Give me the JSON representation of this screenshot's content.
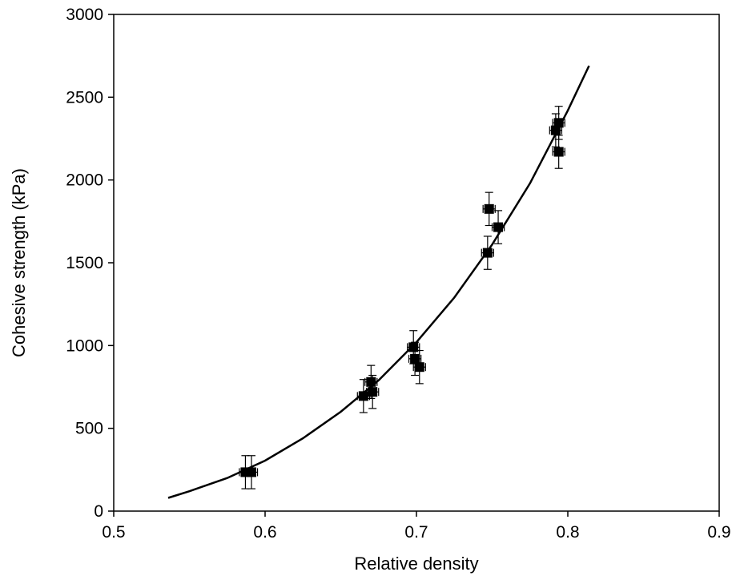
{
  "chart_data": {
    "type": "scatter",
    "title": "",
    "xlabel": "Relative density",
    "ylabel": "Cohesive strength (kPa)",
    "xlim": [
      0.5,
      0.9
    ],
    "ylim": [
      0,
      3000
    ],
    "x_ticks": [
      "0.5",
      "0.6",
      "0.7",
      "0.8",
      "0.9"
    ],
    "y_ticks": [
      "0",
      "500",
      "1000",
      "1500",
      "2000",
      "2500",
      "3000"
    ],
    "grid": false,
    "legend": "none",
    "marker": "square",
    "marker_color": "#000000",
    "points": [
      {
        "x": 0.587,
        "y": 235,
        "y_err": 100,
        "x_err": 0.004
      },
      {
        "x": 0.591,
        "y": 235,
        "y_err": 100,
        "x_err": 0.004
      },
      {
        "x": 0.665,
        "y": 695,
        "y_err": 100,
        "x_err": 0.004
      },
      {
        "x": 0.67,
        "y": 780,
        "y_err": 100,
        "x_err": 0.004
      },
      {
        "x": 0.671,
        "y": 720,
        "y_err": 100,
        "x_err": 0.004
      },
      {
        "x": 0.698,
        "y": 990,
        "y_err": 100,
        "x_err": 0.004
      },
      {
        "x": 0.699,
        "y": 920,
        "y_err": 100,
        "x_err": 0.004
      },
      {
        "x": 0.702,
        "y": 870,
        "y_err": 100,
        "x_err": 0.004
      },
      {
        "x": 0.747,
        "y": 1560,
        "y_err": 100,
        "x_err": 0.004
      },
      {
        "x": 0.748,
        "y": 1825,
        "y_err": 100,
        "x_err": 0.004
      },
      {
        "x": 0.754,
        "y": 1715,
        "y_err": 100,
        "x_err": 0.004
      },
      {
        "x": 0.792,
        "y": 2300,
        "y_err": 100,
        "x_err": 0.004
      },
      {
        "x": 0.794,
        "y": 2345,
        "y_err": 100,
        "x_err": 0.004
      },
      {
        "x": 0.794,
        "y": 2170,
        "y_err": 100,
        "x_err": 0.004
      }
    ],
    "fit_curve": {
      "x": [
        0.536,
        0.55,
        0.575,
        0.6,
        0.625,
        0.65,
        0.675,
        0.7,
        0.725,
        0.75,
        0.775,
        0.8,
        0.814
      ],
      "y": [
        80,
        120,
        200,
        305,
        440,
        600,
        790,
        1020,
        1290,
        1610,
        1980,
        2420,
        2690
      ]
    }
  }
}
